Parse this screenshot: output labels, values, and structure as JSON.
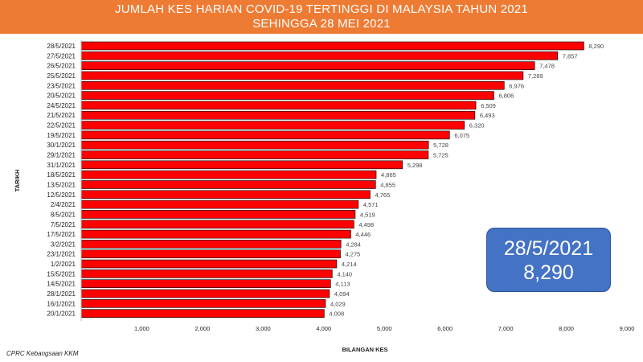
{
  "header": {
    "title_line1": "JUMLAH KES HARIAN COVID-19 TERTINGGI DI MALAYSIA TAHUN 2021",
    "title_line2": "SEHINGGA 28 MEI 2021",
    "background_color": "#ee7b33"
  },
  "callout": {
    "date": "28/5/2021",
    "value": "8,290",
    "background_color": "#4472c4"
  },
  "source": "CPRC Kebangsaan KKM",
  "chart_data": {
    "type": "bar",
    "orientation": "horizontal",
    "title": "JUMLAH KES HARIAN COVID-19 TERTINGGI DI MALAYSIA TAHUN 2021 SEHINGGA 28 MEI 2021",
    "xlabel": "BILANGAN KES",
    "ylabel": "TARIKH",
    "xlim": [
      0,
      9000
    ],
    "xticks": [
      1000,
      2000,
      3000,
      4000,
      5000,
      6000,
      7000,
      8000,
      9000
    ],
    "xtick_labels": [
      "1,000",
      "2,000",
      "3,000",
      "4,000",
      "5,000",
      "6,000",
      "7,000",
      "8,000",
      "9,000"
    ],
    "grid": false,
    "bar_color": "#ff0000",
    "categories": [
      "28/5/2021",
      "27/5/2021",
      "26/5/2021",
      "25/5/2021",
      "23/5/2021",
      "20/5/2021",
      "24/5/2021",
      "21/5/2021",
      "22/5/2021",
      "19/5/2021",
      "30/1/2021",
      "29/1/2021",
      "31/1/2021",
      "18/5/2021",
      "13/5/2021",
      "12/5/2021",
      "2/4/2021",
      "8/5/2021",
      "7/5/2021",
      "17/5/2021",
      "3/2/2021",
      "23/1/2021",
      "1/2/2021",
      "15/5/2021",
      "14/5/2021",
      "28/1/2021",
      "16/1/2021",
      "20/1/2021"
    ],
    "values": [
      8290,
      7857,
      7478,
      7289,
      6976,
      6806,
      6509,
      6493,
      6320,
      6075,
      5728,
      5725,
      5298,
      4865,
      4855,
      4765,
      4571,
      4519,
      4498,
      4446,
      4284,
      4275,
      4214,
      4140,
      4113,
      4094,
      4029,
      4008
    ],
    "value_labels": [
      "8,290",
      "7,857",
      "7,478",
      "7,289",
      "6,976",
      "6,806",
      "6,509",
      "6,493",
      "6,320",
      "6,075",
      "5,728",
      "5,725",
      "5,298",
      "4,865",
      "4,855",
      "4,765",
      "4,571",
      "4,519",
      "4,498",
      "4,446",
      "4,284",
      "4,275",
      "4,214",
      "4,140",
      "4,113",
      "4,094",
      "4,029",
      "4,008"
    ]
  }
}
